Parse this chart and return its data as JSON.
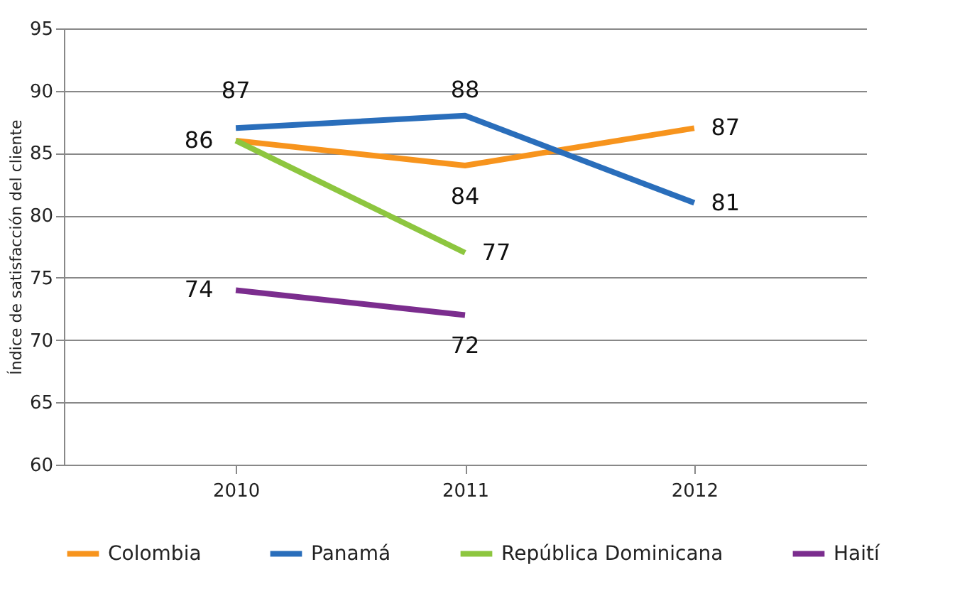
{
  "chart_data": {
    "type": "line",
    "ylabel": "Índice de satisfacción del cliente",
    "categories": [
      "2010",
      "2011",
      "2012"
    ],
    "series": [
      {
        "name": "Colombia",
        "color": "#f7941d",
        "values": [
          86,
          84,
          87
        ],
        "value_labels": [
          "86",
          "84",
          "87"
        ]
      },
      {
        "name": "Panamá",
        "color": "#2a6ebb",
        "values": [
          87,
          88,
          81
        ],
        "value_labels": [
          "87",
          "88",
          "81"
        ]
      },
      {
        "name": "República Dominicana",
        "color": "#8dc63f",
        "values": [
          86,
          77,
          null
        ],
        "value_labels": [
          null,
          "77",
          null
        ]
      },
      {
        "name": "Haití",
        "color": "#7b2d8e",
        "values": [
          74,
          72,
          null
        ],
        "value_labels": [
          "74",
          "72",
          null
        ]
      }
    ],
    "ylim": [
      60,
      95
    ],
    "yticks": [
      60,
      65,
      70,
      75,
      80,
      85,
      90,
      95
    ],
    "grid": "y",
    "legend": "bottom",
    "marker": "none",
    "line_style": "solid"
  }
}
